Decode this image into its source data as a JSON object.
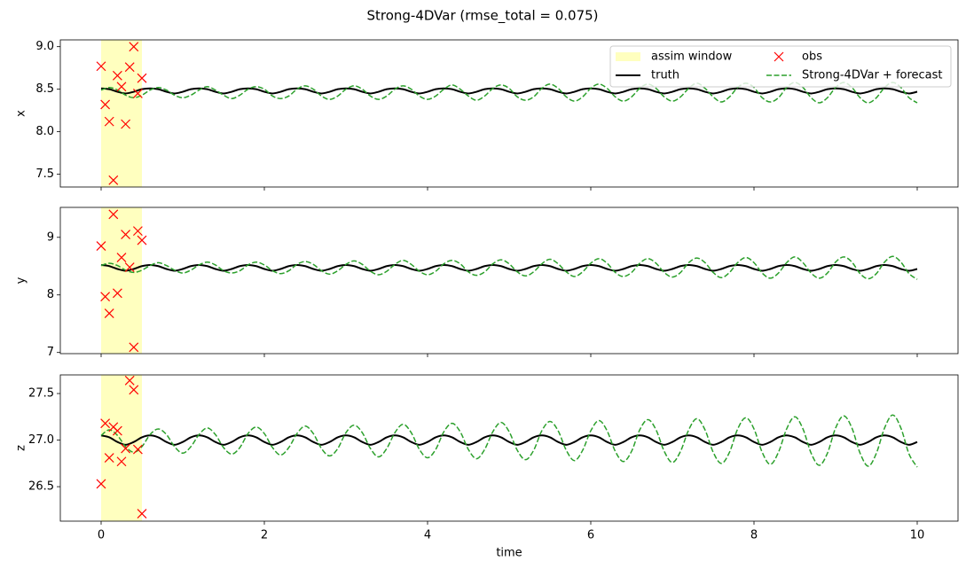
{
  "title": "Strong-4DVar (rmse_total = 0.075)",
  "chart_data": [
    {
      "type": "line",
      "ylabel": "x",
      "legend": "upper right",
      "xlim": [
        -0.5,
        10.5
      ],
      "ylim": [
        7.35,
        9.08
      ],
      "yticks": [
        {
          "value": 7.5,
          "label": "7.5"
        },
        {
          "value": 8,
          "label": "8.0"
        },
        8.5,
        {
          "value": 9,
          "label": "9.0"
        }
      ],
      "span": {
        "name": "assim window",
        "color": "#ffffbf",
        "x": [
          0,
          0.5
        ]
      },
      "x": [
        0,
        0.1,
        0.2,
        0.3,
        0.4,
        0.5,
        0.6,
        0.7,
        0.8,
        0.9,
        1,
        1.1,
        1.2,
        1.3,
        1.4,
        1.5,
        1.6,
        1.7,
        1.8,
        1.9,
        2,
        2.1,
        2.2,
        2.3,
        2.4,
        2.5,
        2.6,
        2.7,
        2.8,
        2.9,
        3,
        3.1,
        3.2,
        3.3,
        3.4,
        3.5,
        3.6,
        3.7,
        3.8,
        3.9,
        4,
        4.1,
        4.2,
        4.3,
        4.4,
        4.5,
        4.6,
        4.7,
        4.8,
        4.9,
        5,
        5.1,
        5.2,
        5.3,
        5.4,
        5.5,
        5.6,
        5.7,
        5.8,
        5.9,
        6,
        6.1,
        6.2,
        6.3,
        6.4,
        6.5,
        6.6,
        6.7,
        6.8,
        6.9,
        7,
        7.1,
        7.2,
        7.3,
        7.4,
        7.5,
        7.6,
        7.7,
        7.8,
        7.9,
        8,
        8.1,
        8.2,
        8.3,
        8.4,
        8.5,
        8.6,
        8.7,
        8.8,
        8.9,
        9,
        9.1,
        9.2,
        9.3,
        9.4,
        9.5,
        9.6,
        9.7,
        9.8,
        9.9,
        10
      ],
      "series": [
        {
          "name": "truth",
          "color": "#000000",
          "linestyle": "solid",
          "values": [
            8.51,
            8.5,
            8.47,
            8.45,
            8.47,
            8.5,
            8.51,
            8.5,
            8.47,
            8.45,
            8.47,
            8.5,
            8.51,
            8.5,
            8.47,
            8.45,
            8.47,
            8.5,
            8.51,
            8.5,
            8.47,
            8.45,
            8.47,
            8.5,
            8.51,
            8.5,
            8.47,
            8.45,
            8.47,
            8.5,
            8.51,
            8.5,
            8.47,
            8.45,
            8.47,
            8.5,
            8.51,
            8.5,
            8.47,
            8.45,
            8.47,
            8.5,
            8.51,
            8.5,
            8.47,
            8.45,
            8.47,
            8.5,
            8.51,
            8.5,
            8.47,
            8.45,
            8.47,
            8.5,
            8.51,
            8.5,
            8.47,
            8.45,
            8.47,
            8.5,
            8.51,
            8.5,
            8.47,
            8.45,
            8.47,
            8.5,
            8.51,
            8.5,
            8.47,
            8.45,
            8.47,
            8.5,
            8.51,
            8.5,
            8.47,
            8.45,
            8.47,
            8.5,
            8.51,
            8.5,
            8.47,
            8.45,
            8.47,
            8.5,
            8.51,
            8.5,
            8.47,
            8.45,
            8.47,
            8.5,
            8.51,
            8.5,
            8.47,
            8.45,
            8.47,
            8.5,
            8.51,
            8.5,
            8.47,
            8.45,
            8.47
          ]
        },
        {
          "name": "Strong-4DVar + forecast",
          "color": "#2ca02c",
          "linestyle": "dashed",
          "values": [
            8.49,
            8.52,
            8.49,
            8.43,
            8.4,
            8.43,
            8.49,
            8.52,
            8.49,
            8.43,
            8.4,
            8.43,
            8.49,
            8.53,
            8.49,
            8.43,
            8.39,
            8.43,
            8.5,
            8.53,
            8.5,
            8.42,
            8.39,
            8.42,
            8.5,
            8.54,
            8.5,
            8.42,
            8.38,
            8.42,
            8.5,
            8.54,
            8.5,
            8.42,
            8.38,
            8.42,
            8.5,
            8.54,
            8.5,
            8.42,
            8.38,
            8.42,
            8.5,
            8.55,
            8.5,
            8.42,
            8.37,
            8.42,
            8.51,
            8.55,
            8.51,
            8.41,
            8.37,
            8.41,
            8.51,
            8.56,
            8.51,
            8.41,
            8.36,
            8.41,
            8.51,
            8.56,
            8.51,
            8.41,
            8.36,
            8.41,
            8.51,
            8.56,
            8.51,
            8.41,
            8.36,
            8.41,
            8.51,
            8.57,
            8.51,
            8.41,
            8.35,
            8.41,
            8.52,
            8.57,
            8.52,
            8.4,
            8.35,
            8.4,
            8.52,
            8.58,
            8.52,
            8.4,
            8.34,
            8.4,
            8.52,
            8.58,
            8.52,
            8.4,
            8.34,
            8.4,
            8.52,
            8.58,
            8.52,
            8.4,
            8.34
          ]
        }
      ],
      "obs": {
        "name": "obs",
        "color": "#ff0000",
        "marker": "x",
        "x": [
          0,
          0.05,
          0.1,
          0.15,
          0.2,
          0.25,
          0.3,
          0.35,
          0.4,
          0.45,
          0.5
        ],
        "values": [
          8.77,
          8.32,
          8.12,
          7.43,
          8.66,
          8.53,
          8.09,
          8.76,
          9.0,
          8.45,
          8.63
        ]
      }
    },
    {
      "type": "line",
      "ylabel": "y",
      "xlim": [
        -0.5,
        10.5
      ],
      "ylim": [
        6.98,
        9.52
      ],
      "yticks": [
        7,
        8,
        9
      ],
      "span": {
        "color": "#ffffbf",
        "x": [
          0,
          0.5
        ]
      },
      "x": [
        0,
        0.1,
        0.2,
        0.3,
        0.4,
        0.5,
        0.6,
        0.7,
        0.8,
        0.9,
        1,
        1.1,
        1.2,
        1.3,
        1.4,
        1.5,
        1.6,
        1.7,
        1.8,
        1.9,
        2,
        2.1,
        2.2,
        2.3,
        2.4,
        2.5,
        2.6,
        2.7,
        2.8,
        2.9,
        3,
        3.1,
        3.2,
        3.3,
        3.4,
        3.5,
        3.6,
        3.7,
        3.8,
        3.9,
        4,
        4.1,
        4.2,
        4.3,
        4.4,
        4.5,
        4.6,
        4.7,
        4.8,
        4.9,
        5,
        5.1,
        5.2,
        5.3,
        5.4,
        5.5,
        5.6,
        5.7,
        5.8,
        5.9,
        6,
        6.1,
        6.2,
        6.3,
        6.4,
        6.5,
        6.6,
        6.7,
        6.8,
        6.9,
        7,
        7.1,
        7.2,
        7.3,
        7.4,
        7.5,
        7.6,
        7.7,
        7.8,
        7.9,
        8,
        8.1,
        8.2,
        8.3,
        8.4,
        8.5,
        8.6,
        8.7,
        8.8,
        8.9,
        9,
        9.1,
        9.2,
        9.3,
        9.4,
        9.5,
        9.6,
        9.7,
        9.8,
        9.9,
        10
      ],
      "series": [
        {
          "color": "#000000",
          "linestyle": "solid",
          "values": [
            8.52,
            8.5,
            8.45,
            8.42,
            8.45,
            8.5,
            8.52,
            8.5,
            8.45,
            8.42,
            8.45,
            8.5,
            8.52,
            8.5,
            8.45,
            8.42,
            8.45,
            8.5,
            8.52,
            8.5,
            8.45,
            8.42,
            8.45,
            8.5,
            8.52,
            8.5,
            8.45,
            8.42,
            8.45,
            8.5,
            8.52,
            8.5,
            8.45,
            8.42,
            8.45,
            8.5,
            8.52,
            8.5,
            8.45,
            8.42,
            8.45,
            8.5,
            8.52,
            8.5,
            8.45,
            8.42,
            8.45,
            8.5,
            8.52,
            8.5,
            8.45,
            8.42,
            8.45,
            8.5,
            8.52,
            8.5,
            8.45,
            8.42,
            8.45,
            8.5,
            8.52,
            8.5,
            8.45,
            8.42,
            8.45,
            8.5,
            8.52,
            8.5,
            8.45,
            8.42,
            8.45,
            8.5,
            8.52,
            8.5,
            8.45,
            8.42,
            8.45,
            8.5,
            8.52,
            8.5,
            8.45,
            8.42,
            8.45,
            8.5,
            8.52,
            8.5,
            8.45,
            8.42,
            8.45,
            8.5,
            8.52,
            8.5,
            8.45,
            8.42,
            8.45,
            8.5,
            8.52,
            8.5,
            8.45,
            8.42,
            8.45
          ]
        },
        {
          "color": "#2ca02c",
          "linestyle": "dashed",
          "values": [
            8.51,
            8.55,
            8.51,
            8.43,
            8.39,
            8.43,
            8.51,
            8.56,
            8.51,
            8.43,
            8.38,
            8.43,
            8.52,
            8.57,
            8.52,
            8.42,
            8.38,
            8.42,
            8.52,
            8.57,
            8.52,
            8.42,
            8.37,
            8.42,
            8.53,
            8.58,
            8.53,
            8.42,
            8.36,
            8.42,
            8.53,
            8.59,
            8.53,
            8.41,
            8.35,
            8.41,
            8.53,
            8.6,
            8.53,
            8.41,
            8.35,
            8.41,
            8.54,
            8.6,
            8.54,
            8.4,
            8.34,
            8.4,
            8.54,
            8.61,
            8.54,
            8.4,
            8.33,
            8.4,
            8.54,
            8.62,
            8.54,
            8.4,
            8.32,
            8.4,
            8.55,
            8.63,
            8.55,
            8.39,
            8.32,
            8.39,
            8.55,
            8.63,
            8.55,
            8.39,
            8.31,
            8.39,
            8.56,
            8.64,
            8.56,
            8.39,
            8.3,
            8.39,
            8.56,
            8.65,
            8.56,
            8.38,
            8.29,
            8.38,
            8.56,
            8.66,
            8.56,
            8.38,
            8.29,
            8.38,
            8.57,
            8.66,
            8.57,
            8.37,
            8.28,
            8.37,
            8.57,
            8.67,
            8.57,
            8.37,
            8.27
          ]
        }
      ],
      "obs": {
        "color": "#ff0000",
        "marker": "x",
        "x": [
          0,
          0.05,
          0.1,
          0.15,
          0.2,
          0.25,
          0.3,
          0.35,
          0.4,
          0.45,
          0.5
        ],
        "values": [
          8.85,
          7.97,
          7.68,
          9.4,
          8.03,
          8.65,
          9.05,
          8.48,
          7.09,
          9.11,
          8.95
        ]
      }
    },
    {
      "type": "line",
      "ylabel": "z",
      "xlabel": "time",
      "xlim": [
        -0.5,
        10.5
      ],
      "ylim": [
        26.13,
        27.7
      ],
      "xticks": [
        0,
        2,
        4,
        6,
        8,
        10
      ],
      "yticks": [
        26.5,
        {
          "value": 27,
          "label": "27.0"
        },
        27.5
      ],
      "span": {
        "color": "#ffffbf",
        "x": [
          0,
          0.5
        ]
      },
      "x": [
        0,
        0.1,
        0.2,
        0.3,
        0.4,
        0.5,
        0.6,
        0.7,
        0.8,
        0.9,
        1,
        1.1,
        1.2,
        1.3,
        1.4,
        1.5,
        1.6,
        1.7,
        1.8,
        1.9,
        2,
        2.1,
        2.2,
        2.3,
        2.4,
        2.5,
        2.6,
        2.7,
        2.8,
        2.9,
        3,
        3.1,
        3.2,
        3.3,
        3.4,
        3.5,
        3.6,
        3.7,
        3.8,
        3.9,
        4,
        4.1,
        4.2,
        4.3,
        4.4,
        4.5,
        4.6,
        4.7,
        4.8,
        4.9,
        5,
        5.1,
        5.2,
        5.3,
        5.4,
        5.5,
        5.6,
        5.7,
        5.8,
        5.9,
        6,
        6.1,
        6.2,
        6.3,
        6.4,
        6.5,
        6.6,
        6.7,
        6.8,
        6.9,
        7,
        7.1,
        7.2,
        7.3,
        7.4,
        7.5,
        7.6,
        7.7,
        7.8,
        7.9,
        8,
        8.1,
        8.2,
        8.3,
        8.4,
        8.5,
        8.6,
        8.7,
        8.8,
        8.9,
        9,
        9.1,
        9.2,
        9.3,
        9.4,
        9.5,
        9.6,
        9.7,
        9.8,
        9.9,
        10
      ],
      "series": [
        {
          "color": "#000000",
          "linestyle": "solid",
          "values": [
            27.05,
            27.03,
            26.98,
            26.95,
            26.98,
            27.03,
            27.05,
            27.03,
            26.98,
            26.95,
            26.98,
            27.03,
            27.05,
            27.03,
            26.98,
            26.95,
            26.98,
            27.03,
            27.05,
            27.03,
            26.98,
            26.95,
            26.98,
            27.03,
            27.05,
            27.03,
            26.98,
            26.95,
            26.98,
            27.03,
            27.05,
            27.03,
            26.98,
            26.95,
            26.98,
            27.03,
            27.05,
            27.03,
            26.98,
            26.95,
            26.98,
            27.03,
            27.05,
            27.03,
            26.98,
            26.95,
            26.98,
            27.03,
            27.05,
            27.03,
            26.98,
            26.95,
            26.98,
            27.03,
            27.05,
            27.03,
            26.98,
            26.95,
            26.98,
            27.03,
            27.05,
            27.03,
            26.98,
            26.95,
            26.98,
            27.03,
            27.05,
            27.03,
            26.98,
            26.95,
            26.98,
            27.03,
            27.05,
            27.03,
            26.98,
            26.95,
            26.98,
            27.03,
            27.05,
            27.03,
            26.98,
            26.95,
            26.98,
            27.03,
            27.05,
            27.03,
            26.98,
            26.95,
            26.98,
            27.03,
            27.05,
            27.03,
            26.98,
            26.95,
            26.98,
            27.03,
            27.05,
            27.03,
            26.98,
            26.95,
            26.98
          ]
        },
        {
          "color": "#2ca02c",
          "linestyle": "dashed",
          "values": [
            27.05,
            27.11,
            27.05,
            26.93,
            26.87,
            26.93,
            27.06,
            27.12,
            27.06,
            26.93,
            26.86,
            26.93,
            27.06,
            27.13,
            27.06,
            26.92,
            26.85,
            26.92,
            27.07,
            27.14,
            27.07,
            26.92,
            26.84,
            26.92,
            27.07,
            27.15,
            27.07,
            26.91,
            26.83,
            26.91,
            27.08,
            27.16,
            27.08,
            26.91,
            26.82,
            26.91,
            27.08,
            27.17,
            27.08,
            26.9,
            26.81,
            26.9,
            27.09,
            27.18,
            27.09,
            26.9,
            26.8,
            26.9,
            27.09,
            27.19,
            27.09,
            26.89,
            26.79,
            26.89,
            27.1,
            27.2,
            27.1,
            26.89,
            26.78,
            26.89,
            27.1,
            27.21,
            27.1,
            26.88,
            26.77,
            26.88,
            27.11,
            27.22,
            27.11,
            26.88,
            26.76,
            26.88,
            27.11,
            27.23,
            27.11,
            26.87,
            26.75,
            26.87,
            27.12,
            27.24,
            27.12,
            26.87,
            26.74,
            26.87,
            27.12,
            27.25,
            27.12,
            26.86,
            26.73,
            26.86,
            27.13,
            27.26,
            27.13,
            26.86,
            26.72,
            26.86,
            27.13,
            27.27,
            27.13,
            26.85,
            26.71
          ]
        }
      ],
      "obs": {
        "color": "#ff0000",
        "marker": "x",
        "x": [
          0,
          0.05,
          0.1,
          0.15,
          0.2,
          0.25,
          0.3,
          0.35,
          0.4,
          0.45,
          0.5
        ],
        "values": [
          26.53,
          27.18,
          26.81,
          27.14,
          27.1,
          26.77,
          26.91,
          27.64,
          27.54,
          26.9,
          26.21
        ]
      }
    }
  ]
}
